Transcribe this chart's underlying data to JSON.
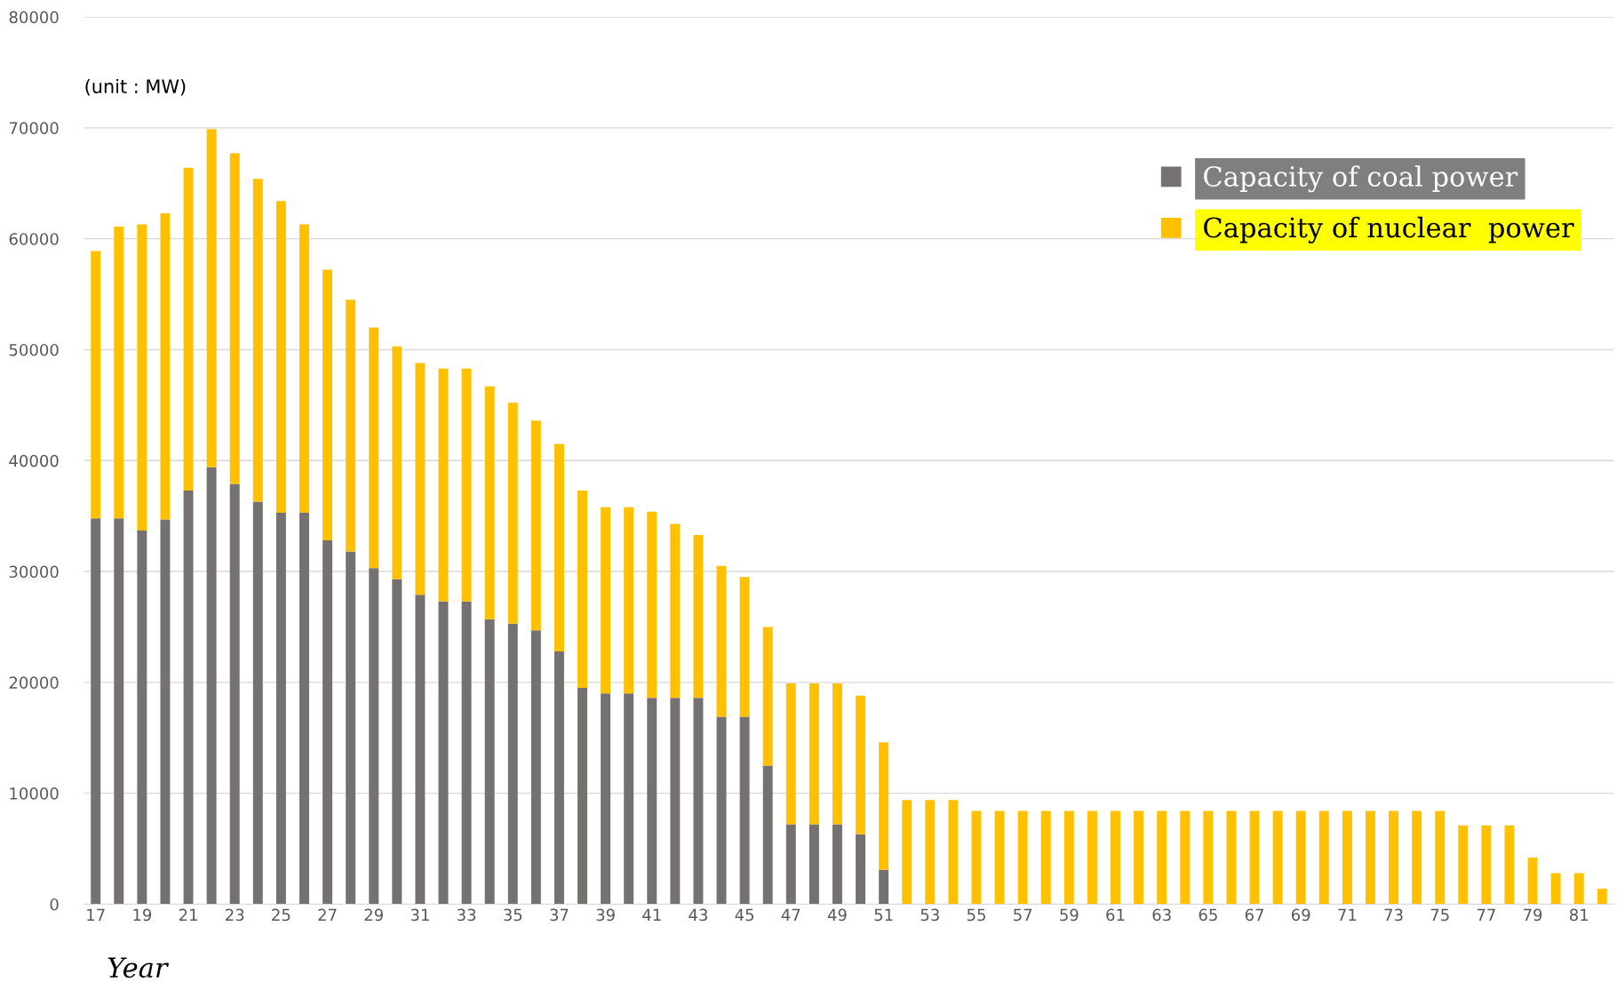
{
  "chart_data": {
    "type": "bar",
    "stacked": true,
    "xlabel": "Year",
    "ylabel": "(unit : MW)",
    "categories": [
      "17",
      null,
      "19",
      null,
      "21",
      null,
      "23",
      null,
      "25",
      null,
      "27",
      null,
      "29",
      null,
      "31",
      null,
      "33",
      null,
      "35",
      null,
      "37",
      null,
      "39",
      null,
      "41",
      null,
      "43",
      null,
      "45",
      null,
      "47",
      null,
      "49",
      null,
      "51",
      null,
      "53",
      null,
      "55",
      null,
      "57",
      null,
      "59",
      null,
      "61",
      null,
      "63",
      null,
      "65",
      null,
      "67",
      null,
      "69",
      null,
      "71",
      null,
      "73",
      null,
      "75",
      null,
      "77",
      null,
      "79",
      null,
      "81",
      null
    ],
    "series": [
      {
        "name": "Capacity of coal power",
        "color": "#767171",
        "values": [
          34800,
          34800,
          33700,
          34700,
          37300,
          39400,
          37900,
          36300,
          35300,
          35300,
          32800,
          31800,
          30300,
          29300,
          27900,
          27300,
          27300,
          25700,
          25300,
          24700,
          22800,
          19500,
          19000,
          19000,
          18600,
          18600,
          18600,
          16900,
          16900,
          12500,
          7200,
          7200,
          7200,
          6300,
          3100,
          0,
          0,
          0,
          0,
          0,
          0,
          0,
          0,
          0,
          0,
          0,
          0,
          0,
          0,
          0,
          0,
          0,
          0,
          0,
          0,
          0,
          0,
          0,
          0,
          0,
          0,
          0,
          0,
          0,
          0,
          0
        ]
      },
      {
        "name": "Capacity of nuclear  power",
        "color": "#ffc000",
        "values": [
          24100,
          26300,
          27600,
          27600,
          29100,
          30500,
          29800,
          29100,
          28100,
          26000,
          24400,
          22700,
          21700,
          21000,
          20900,
          21000,
          21000,
          21000,
          19900,
          18900,
          18700,
          17800,
          16800,
          16800,
          16800,
          15700,
          14700,
          13600,
          12600,
          12500,
          12700,
          12700,
          12700,
          12500,
          11500,
          9400,
          9400,
          9400,
          8400,
          8400,
          8400,
          8400,
          8400,
          8400,
          8400,
          8400,
          8400,
          8400,
          8400,
          8400,
          8400,
          8400,
          8400,
          8400,
          8400,
          8400,
          8400,
          8400,
          8400,
          7100,
          7100,
          7100,
          4200,
          2800,
          2800,
          1400
        ]
      }
    ],
    "ylim": [
      0,
      80000
    ],
    "yticks": [
      0,
      10000,
      20000,
      30000,
      40000,
      50000,
      60000,
      70000,
      80000
    ],
    "grid": "y",
    "legend": "top right"
  }
}
